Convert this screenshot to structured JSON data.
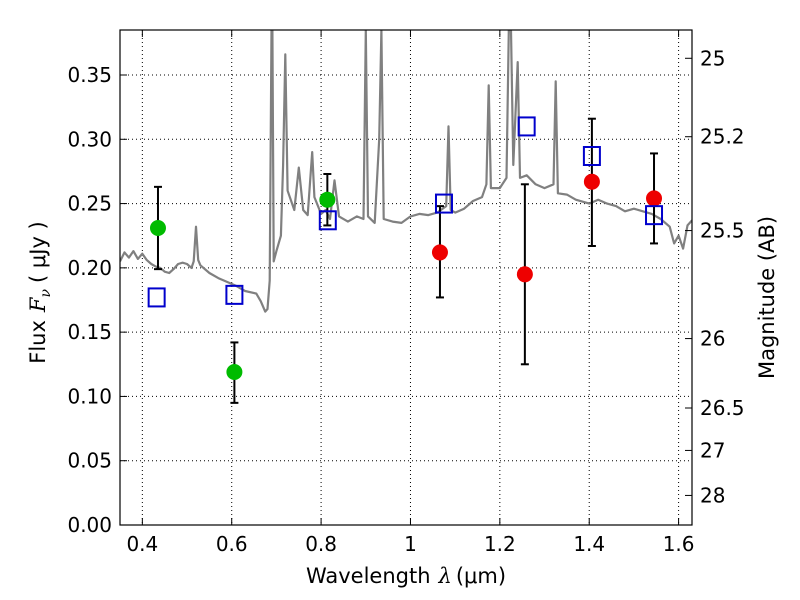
{
  "chart_data": {
    "type": "scatter",
    "title": "",
    "xlabel": {
      "prefix": "Wavelength",
      "symbol": "λ",
      "unit": "(μm)"
    },
    "ylabel": {
      "prefix": "Flux",
      "symbol": "F",
      "subscript": "ν",
      "unit": "( μJy )"
    },
    "y2label": "Magnitude (AB)",
    "xlim": [
      0.35,
      1.63
    ],
    "ylim": [
      0.0,
      0.385
    ],
    "grid": true,
    "legend": "none",
    "x_ticks": [
      0.4,
      0.6,
      0.8,
      1.0,
      1.2,
      1.4,
      1.6
    ],
    "x_tick_labels": [
      "0.4",
      "0.6",
      "0.8",
      "1",
      "1.2",
      "1.4",
      "1.6"
    ],
    "y_ticks": [
      0.0,
      0.05,
      0.1,
      0.15,
      0.2,
      0.25,
      0.3,
      0.35
    ],
    "y_tick_labels": [
      "0.00",
      "0.05",
      "0.10",
      "0.15",
      "0.20",
      "0.25",
      "0.30",
      "0.35"
    ],
    "y2_ticks": [
      {
        "label": "25",
        "flux": 0.363
      },
      {
        "label": "25.2",
        "flux": 0.302
      },
      {
        "label": "25.5",
        "flux": 0.229
      },
      {
        "label": "26",
        "flux": 0.145
      },
      {
        "label": "26.5",
        "flux": 0.091
      },
      {
        "label": "27",
        "flux": 0.058
      },
      {
        "label": "28",
        "flux": 0.023
      }
    ],
    "colors": {
      "spectrum": "#808080",
      "green": "#00bb00",
      "red": "#ee0000",
      "model": "#0000cc",
      "errorbar": "#000000"
    },
    "series": [
      {
        "marker": "green-circle",
        "points": [
          {
            "x": 0.435,
            "y": 0.231,
            "ylo": 0.199,
            "yhi": 0.263
          },
          {
            "x": 0.606,
            "y": 0.119,
            "ylo": 0.095,
            "yhi": 0.142
          },
          {
            "x": 0.814,
            "y": 0.253,
            "ylo": 0.233,
            "yhi": 0.273
          }
        ]
      },
      {
        "marker": "red-circle",
        "points": [
          {
            "x": 1.066,
            "y": 0.212,
            "ylo": 0.177,
            "yhi": 0.248
          },
          {
            "x": 1.256,
            "y": 0.195,
            "ylo": 0.125,
            "yhi": 0.265
          },
          {
            "x": 1.406,
            "y": 0.267,
            "ylo": 0.217,
            "yhi": 0.316
          },
          {
            "x": 1.545,
            "y": 0.254,
            "ylo": 0.219,
            "yhi": 0.289
          }
        ]
      },
      {
        "marker": "blue-open-square",
        "points": [
          {
            "x": 0.432,
            "y": 0.177
          },
          {
            "x": 0.606,
            "y": 0.179
          },
          {
            "x": 0.815,
            "y": 0.237
          },
          {
            "x": 1.075,
            "y": 0.25
          },
          {
            "x": 1.26,
            "y": 0.31
          },
          {
            "x": 1.406,
            "y": 0.287
          },
          {
            "x": 1.545,
            "y": 0.241
          }
        ]
      }
    ],
    "spectrum": [
      [
        0.35,
        0.205
      ],
      [
        0.36,
        0.212
      ],
      [
        0.37,
        0.208
      ],
      [
        0.38,
        0.213
      ],
      [
        0.39,
        0.207
      ],
      [
        0.4,
        0.211
      ],
      [
        0.41,
        0.206
      ],
      [
        0.42,
        0.203
      ],
      [
        0.43,
        0.201
      ],
      [
        0.44,
        0.2
      ],
      [
        0.45,
        0.197
      ],
      [
        0.46,
        0.196
      ],
      [
        0.47,
        0.199
      ],
      [
        0.48,
        0.203
      ],
      [
        0.49,
        0.204
      ],
      [
        0.5,
        0.203
      ],
      [
        0.51,
        0.2
      ],
      [
        0.515,
        0.205
      ],
      [
        0.52,
        0.232
      ],
      [
        0.525,
        0.206
      ],
      [
        0.53,
        0.202
      ],
      [
        0.55,
        0.196
      ],
      [
        0.57,
        0.192
      ],
      [
        0.59,
        0.189
      ],
      [
        0.61,
        0.186
      ],
      [
        0.63,
        0.182
      ],
      [
        0.655,
        0.18
      ],
      [
        0.665,
        0.174
      ],
      [
        0.675,
        0.166
      ],
      [
        0.68,
        0.168
      ],
      [
        0.685,
        0.19
      ],
      [
        0.689,
        0.385
      ],
      [
        0.691,
        0.385
      ],
      [
        0.694,
        0.205
      ],
      [
        0.7,
        0.213
      ],
      [
        0.71,
        0.225
      ],
      [
        0.715,
        0.28
      ],
      [
        0.72,
        0.366
      ],
      [
        0.725,
        0.26
      ],
      [
        0.74,
        0.245
      ],
      [
        0.75,
        0.278
      ],
      [
        0.76,
        0.245
      ],
      [
        0.77,
        0.241
      ],
      [
        0.78,
        0.29
      ],
      [
        0.785,
        0.255
      ],
      [
        0.8,
        0.242
      ],
      [
        0.81,
        0.245
      ],
      [
        0.82,
        0.238
      ],
      [
        0.83,
        0.268
      ],
      [
        0.84,
        0.24
      ],
      [
        0.86,
        0.236
      ],
      [
        0.88,
        0.24
      ],
      [
        0.895,
        0.238
      ],
      [
        0.9,
        0.385
      ],
      [
        0.905,
        0.24
      ],
      [
        0.92,
        0.235
      ],
      [
        0.93,
        0.3
      ],
      [
        0.935,
        0.385
      ],
      [
        0.94,
        0.238
      ],
      [
        0.96,
        0.236
      ],
      [
        0.98,
        0.235
      ],
      [
        1.0,
        0.24
      ],
      [
        1.02,
        0.242
      ],
      [
        1.04,
        0.241
      ],
      [
        1.06,
        0.243
      ],
      [
        1.08,
        0.248
      ],
      [
        1.085,
        0.31
      ],
      [
        1.09,
        0.245
      ],
      [
        1.1,
        0.243
      ],
      [
        1.12,
        0.246
      ],
      [
        1.14,
        0.252
      ],
      [
        1.16,
        0.255
      ],
      [
        1.17,
        0.265
      ],
      [
        1.175,
        0.342
      ],
      [
        1.18,
        0.262
      ],
      [
        1.2,
        0.262
      ],
      [
        1.215,
        0.27
      ],
      [
        1.22,
        0.385
      ],
      [
        1.225,
        0.385
      ],
      [
        1.23,
        0.28
      ],
      [
        1.24,
        0.36
      ],
      [
        1.245,
        0.27
      ],
      [
        1.26,
        0.272
      ],
      [
        1.28,
        0.265
      ],
      [
        1.3,
        0.262
      ],
      [
        1.32,
        0.265
      ],
      [
        1.325,
        0.345
      ],
      [
        1.33,
        0.258
      ],
      [
        1.35,
        0.257
      ],
      [
        1.37,
        0.253
      ],
      [
        1.4,
        0.25
      ],
      [
        1.42,
        0.253
      ],
      [
        1.44,
        0.25
      ],
      [
        1.46,
        0.248
      ],
      [
        1.48,
        0.244
      ],
      [
        1.5,
        0.246
      ],
      [
        1.52,
        0.244
      ],
      [
        1.54,
        0.242
      ],
      [
        1.56,
        0.238
      ],
      [
        1.58,
        0.232
      ],
      [
        1.59,
        0.219
      ],
      [
        1.6,
        0.225
      ],
      [
        1.61,
        0.215
      ],
      [
        1.62,
        0.233
      ],
      [
        1.63,
        0.237
      ]
    ]
  }
}
